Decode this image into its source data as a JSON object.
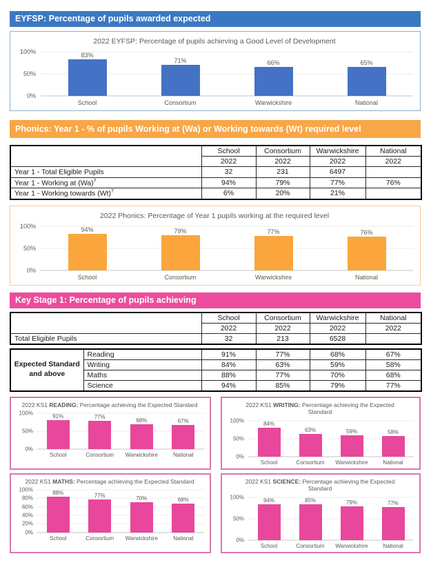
{
  "sections": {
    "eyfsp": {
      "header": "EYFSP: Percentage of pupils awarded expected",
      "accent_color": "#3B78C3"
    },
    "phonics": {
      "header": "Phonics: Year 1 - % of pupils Working at (Wa) or Working towards (Wt) required level",
      "accent_color": "#F8A646",
      "table": {
        "col_headers": [
          "School",
          "Consortium",
          "Warwickshire",
          "National"
        ],
        "year_row": [
          "2022",
          "2022",
          "2022",
          "2022"
        ],
        "rows": [
          {
            "label": "Year 1 - Total Eligible Pupils",
            "sup": "",
            "values": [
              "32",
              "231",
              "6497",
              ""
            ]
          },
          {
            "label": "Year 1 - Working at (Wa)",
            "sup": "7",
            "values": [
              "94%",
              "79%",
              "77%",
              "76%"
            ]
          },
          {
            "label": "Year 1 - Working towards (Wt)",
            "sup": "7",
            "values": [
              "6%",
              "20%",
              "21%",
              ""
            ]
          }
        ]
      }
    },
    "ks1": {
      "header": "Key Stage 1: Percentage of pupils achieving",
      "accent_color": "#EC4C9D",
      "table": {
        "col_headers": [
          "School",
          "Consortium",
          "Warwickshire",
          "National"
        ],
        "year_row": [
          "2022",
          "2022",
          "2022",
          "2022"
        ],
        "total_row": {
          "label": "Total Eligible Pupils",
          "values": [
            "32",
            "213",
            "6528",
            ""
          ]
        },
        "group_label": "Expected Standard and above",
        "subject_rows": [
          {
            "label": "Reading",
            "values": [
              "91%",
              "77%",
              "68%",
              "67%"
            ]
          },
          {
            "label": "Writing",
            "values": [
              "84%",
              "63%",
              "59%",
              "58%"
            ]
          },
          {
            "label": "Maths",
            "values": [
              "88%",
              "77%",
              "70%",
              "68%"
            ]
          },
          {
            "label": "Science",
            "values": [
              "94%",
              "85%",
              "79%",
              "77%"
            ]
          }
        ]
      }
    }
  },
  "chart_data": [
    {
      "type": "bar",
      "title": "2022 EYFSP: Percentage of pupils achieving a Good Level of Development",
      "title_prefix": "2022 EYFSP: Percentage of pupils achieving a Good Level of Development",
      "title_bold": "",
      "title_suffix": "",
      "categories": [
        "School",
        "Consortium",
        "Warwickshire",
        "National"
      ],
      "values": [
        83,
        71,
        66,
        65
      ],
      "labels": [
        "83%",
        "71%",
        "66%",
        "65%"
      ],
      "bar_color": "#4472C4",
      "yticks": [
        "0%",
        "50%",
        "100%"
      ],
      "ytick_values": [
        0,
        50,
        100
      ],
      "ylim": [
        0,
        100
      ],
      "grid": true,
      "legend": false,
      "xlabel": "",
      "ylabel": ""
    },
    {
      "type": "bar",
      "title": "2022 Phonics: Percentage of Year 1 pupils working at the required level",
      "title_prefix": "2022 Phonics: Percentage of Year 1 pupils working at the required level",
      "title_bold": "",
      "title_suffix": "",
      "categories": [
        "School",
        "Consortium",
        "Warwickshire",
        "National"
      ],
      "values": [
        94,
        79,
        77,
        76
      ],
      "labels": [
        "94%",
        "79%",
        "77%",
        "76%"
      ],
      "bar_color": "#FAA63C",
      "yticks": [
        "0%",
        "50%",
        "100%"
      ],
      "ytick_values": [
        0,
        50,
        100
      ],
      "ylim": [
        0,
        100
      ],
      "grid": true,
      "legend": false,
      "xlabel": "",
      "ylabel": ""
    },
    {
      "type": "bar",
      "title": "2022 KS1 READING: Percentage achieving the Expected Standard",
      "title_prefix": "2022 KS1 ",
      "title_bold": "READING:",
      "title_suffix": " Percentage achieving the Expected Standard",
      "categories": [
        "School",
        "Consortium",
        "Warwickshire",
        "National"
      ],
      "values": [
        91,
        77,
        68,
        67
      ],
      "labels": [
        "91%",
        "77%",
        "68%",
        "67%"
      ],
      "bar_color": "#E8479C",
      "yticks": [
        "0%",
        "50%",
        "100%"
      ],
      "ytick_values": [
        0,
        50,
        100
      ],
      "ylim": [
        0,
        100
      ],
      "grid": true,
      "legend": false,
      "xlabel": "",
      "ylabel": ""
    },
    {
      "type": "bar",
      "title": "2022 KS1 WRITING: Percentage achieving the Expected Standard",
      "title_prefix": "2022 KS1 ",
      "title_bold": "WRITING:",
      "title_suffix": " Percentage achieving the Expected Standard",
      "categories": [
        "School",
        "Consortium",
        "Warwickshire",
        "National"
      ],
      "values": [
        84,
        63,
        59,
        58
      ],
      "labels": [
        "84%",
        "63%",
        "59%",
        "58%"
      ],
      "bar_color": "#E8479C",
      "yticks": [
        "0%",
        "50%",
        "100%"
      ],
      "ytick_values": [
        0,
        50,
        100
      ],
      "ylim": [
        0,
        100
      ],
      "grid": true,
      "legend": false,
      "xlabel": "",
      "ylabel": ""
    },
    {
      "type": "bar",
      "title": "2022 KS1 MATHS: Percentage achieving the Expected Standard",
      "title_prefix": "2022 KS1 ",
      "title_bold": "MATHS:",
      "title_suffix": " Percentage achieving the Expected Standard",
      "categories": [
        "School",
        "Consortium",
        "Warwickshire",
        "National"
      ],
      "values": [
        88,
        77,
        70,
        68
      ],
      "labels": [
        "88%",
        "77%",
        "70%",
        "68%"
      ],
      "bar_color": "#E8479C",
      "yticks": [
        "0%",
        "20%",
        "40%",
        "60%",
        "80%",
        "100%"
      ],
      "ytick_values": [
        0,
        20,
        40,
        60,
        80,
        100
      ],
      "ylim": [
        0,
        100
      ],
      "grid": true,
      "legend": false,
      "xlabel": "",
      "ylabel": ""
    },
    {
      "type": "bar",
      "title": "2022 KS1 SCIENCE: Percentage achieving the Expected Standard",
      "title_prefix": "2022 KS1 ",
      "title_bold": "SCIENCE:",
      "title_suffix": " Percentage achieving the Expected Standard",
      "categories": [
        "School",
        "Consortium",
        "Warwickshire",
        "National"
      ],
      "values": [
        94,
        85,
        79,
        77
      ],
      "labels": [
        "94%",
        "85%",
        "79%",
        "77%"
      ],
      "bar_color": "#E8479C",
      "yticks": [
        "0%",
        "50%",
        "100%"
      ],
      "ytick_values": [
        0,
        50,
        100
      ],
      "ylim": [
        0,
        100
      ],
      "grid": true,
      "legend": false,
      "xlabel": "",
      "ylabel": ""
    }
  ]
}
